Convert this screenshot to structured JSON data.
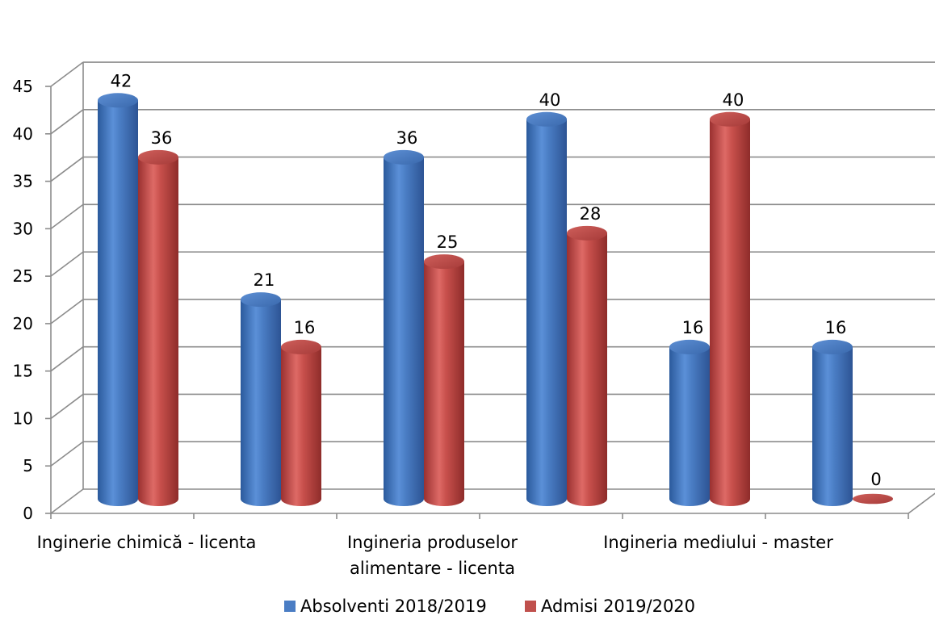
{
  "chart_data": {
    "type": "bar",
    "style": "3d-cylinder",
    "categories": [
      [
        "Inginerie chimică - licenta"
      ],
      [
        ""
      ],
      [
        "Ingineria produselor",
        "alimentare - licenta"
      ],
      [
        ""
      ],
      [
        "Ingineria mediului - master"
      ],
      [
        ""
      ]
    ],
    "series": [
      {
        "name": "Absolventi 2018/2019",
        "color": "#4a7dc4",
        "values": [
          42,
          21,
          36,
          40,
          16,
          16
        ]
      },
      {
        "name": "Admisi 2019/2020",
        "color": "#c0504d",
        "values": [
          36,
          16,
          25,
          28,
          40,
          0
        ]
      }
    ],
    "ylim": [
      0,
      45
    ],
    "yticks": [
      0,
      5,
      10,
      15,
      20,
      25,
      30,
      35,
      40,
      45
    ],
    "grid": true,
    "legend": "bottom",
    "title": "",
    "xlabel": "",
    "ylabel": ""
  }
}
